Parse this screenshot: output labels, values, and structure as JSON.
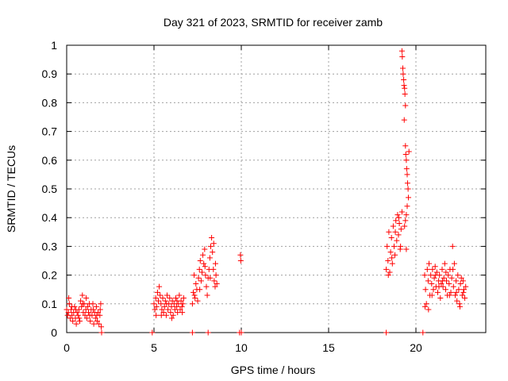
{
  "chart_data": {
    "type": "scatter",
    "title": "Day 321 of 2023, SRMTID for receiver zamb",
    "xlabel": "GPS time / hours",
    "ylabel": "SRMTID / TECUs",
    "xlim": [
      0,
      24
    ],
    "ylim": [
      0,
      1
    ],
    "xticks": [
      0,
      5,
      10,
      15,
      20
    ],
    "xtick_labels": [
      "0",
      "5",
      "10",
      "15",
      "20"
    ],
    "yticks": [
      0,
      0.1,
      0.2,
      0.3,
      0.4,
      0.5,
      0.6,
      0.7,
      0.8,
      0.9,
      1
    ],
    "ytick_labels": [
      "0",
      "0.1",
      "0.2",
      "0.3",
      "0.4",
      "0.5",
      "0.6",
      "0.7",
      "0.8",
      "0.9",
      "1"
    ],
    "grid": true,
    "marker": "+",
    "color": "#ff0000",
    "series": [
      {
        "name": "SRMTID",
        "points": [
          [
            0.0,
            0.08
          ],
          [
            0.05,
            0.06
          ],
          [
            0.1,
            0.07
          ],
          [
            0.15,
            0.1
          ],
          [
            0.2,
            0.05
          ],
          [
            0.25,
            0.08
          ],
          [
            0.3,
            0.06
          ],
          [
            0.35,
            0.04
          ],
          [
            0.4,
            0.07
          ],
          [
            0.45,
            0.09
          ],
          [
            0.5,
            0.05
          ],
          [
            0.55,
            0.03
          ],
          [
            0.6,
            0.07
          ],
          [
            0.65,
            0.06
          ],
          [
            0.7,
            0.08
          ],
          [
            0.75,
            0.04
          ],
          [
            0.8,
            0.11
          ],
          [
            0.85,
            0.09
          ],
          [
            0.9,
            0.13
          ],
          [
            0.95,
            0.07
          ],
          [
            1.0,
            0.1
          ],
          [
            1.05,
            0.06
          ],
          [
            1.1,
            0.08
          ],
          [
            1.15,
            0.05
          ],
          [
            1.2,
            0.09
          ],
          [
            1.25,
            0.07
          ],
          [
            1.3,
            0.1
          ],
          [
            1.35,
            0.04
          ],
          [
            1.4,
            0.08
          ],
          [
            1.45,
            0.06
          ],
          [
            1.5,
            0.1
          ],
          [
            1.55,
            0.03
          ],
          [
            1.6,
            0.07
          ],
          [
            1.65,
            0.05
          ],
          [
            1.7,
            0.09
          ],
          [
            1.75,
            0.04
          ],
          [
            1.8,
            0.07
          ],
          [
            1.85,
            0.03
          ],
          [
            1.9,
            0.06
          ],
          [
            1.95,
            0.1
          ],
          [
            1.98,
            0.02
          ],
          [
            0.12,
            0.12
          ],
          [
            0.3,
            0.09
          ],
          [
            0.52,
            0.08
          ],
          [
            0.72,
            0.05
          ],
          [
            0.92,
            0.1
          ],
          [
            1.12,
            0.12
          ],
          [
            1.32,
            0.06
          ],
          [
            1.52,
            0.08
          ],
          [
            1.72,
            0.06
          ],
          [
            1.92,
            0.08
          ],
          [
            2.0,
            0.0
          ],
          [
            4.9,
            0.0
          ],
          [
            5.0,
            0.1
          ],
          [
            5.05,
            0.08
          ],
          [
            5.1,
            0.12
          ],
          [
            5.15,
            0.09
          ],
          [
            5.2,
            0.14
          ],
          [
            5.25,
            0.11
          ],
          [
            5.3,
            0.16
          ],
          [
            5.35,
            0.13
          ],
          [
            5.4,
            0.1
          ],
          [
            5.45,
            0.08
          ],
          [
            5.5,
            0.12
          ],
          [
            5.55,
            0.07
          ],
          [
            5.6,
            0.09
          ],
          [
            5.65,
            0.11
          ],
          [
            5.7,
            0.06
          ],
          [
            5.75,
            0.13
          ],
          [
            5.8,
            0.08
          ],
          [
            5.85,
            0.1
          ],
          [
            5.9,
            0.12
          ],
          [
            5.95,
            0.07
          ],
          [
            6.0,
            0.09
          ],
          [
            6.05,
            0.11
          ],
          [
            6.1,
            0.06
          ],
          [
            6.15,
            0.1
          ],
          [
            6.2,
            0.08
          ],
          [
            6.25,
            0.12
          ],
          [
            6.3,
            0.09
          ],
          [
            6.35,
            0.07
          ],
          [
            6.4,
            0.1
          ],
          [
            6.45,
            0.13
          ],
          [
            6.5,
            0.08
          ],
          [
            6.55,
            0.11
          ],
          [
            6.6,
            0.09
          ],
          [
            6.65,
            0.1
          ],
          [
            6.7,
            0.12
          ],
          [
            5.12,
            0.06
          ],
          [
            5.42,
            0.06
          ],
          [
            5.72,
            0.1
          ],
          [
            6.02,
            0.05
          ],
          [
            6.32,
            0.11
          ],
          [
            6.62,
            0.07
          ],
          [
            7.2,
            0.0
          ],
          [
            7.2,
            0.1
          ],
          [
            7.25,
            0.14
          ],
          [
            7.3,
            0.2
          ],
          [
            7.35,
            0.12
          ],
          [
            7.4,
            0.17
          ],
          [
            7.45,
            0.15
          ],
          [
            7.5,
            0.11
          ],
          [
            7.55,
            0.19
          ],
          [
            7.6,
            0.22
          ],
          [
            7.65,
            0.25
          ],
          [
            7.7,
            0.18
          ],
          [
            7.75,
            0.21
          ],
          [
            7.8,
            0.27
          ],
          [
            7.85,
            0.24
          ],
          [
            7.9,
            0.29
          ],
          [
            7.95,
            0.2
          ],
          [
            8.0,
            0.16
          ],
          [
            8.05,
            0.13
          ],
          [
            8.1,
            0.19
          ],
          [
            8.15,
            0.22
          ],
          [
            8.2,
            0.26
          ],
          [
            8.25,
            0.3
          ],
          [
            8.3,
            0.33
          ],
          [
            8.35,
            0.28
          ],
          [
            8.4,
            0.22
          ],
          [
            8.45,
            0.18
          ],
          [
            8.5,
            0.16
          ],
          [
            8.55,
            0.2
          ],
          [
            8.6,
            0.17
          ],
          [
            7.32,
            0.13
          ],
          [
            7.62,
            0.15
          ],
          [
            7.92,
            0.23
          ],
          [
            8.22,
            0.19
          ],
          [
            8.42,
            0.31
          ],
          [
            8.52,
            0.24
          ],
          [
            8.1,
            0.0
          ],
          [
            9.9,
            0.0
          ],
          [
            10.0,
            0.0
          ],
          [
            9.95,
            0.27
          ],
          [
            9.97,
            0.25
          ],
          [
            18.3,
            0.0
          ],
          [
            18.3,
            0.22
          ],
          [
            18.35,
            0.3
          ],
          [
            18.4,
            0.25
          ],
          [
            18.45,
            0.35
          ],
          [
            18.5,
            0.21
          ],
          [
            18.55,
            0.28
          ],
          [
            18.6,
            0.33
          ],
          [
            18.65,
            0.24
          ],
          [
            18.7,
            0.37
          ],
          [
            18.75,
            0.3
          ],
          [
            18.8,
            0.27
          ],
          [
            18.85,
            0.39
          ],
          [
            18.9,
            0.32
          ],
          [
            18.95,
            0.41
          ],
          [
            19.0,
            0.34
          ],
          [
            19.05,
            0.38
          ],
          [
            19.1,
            0.29
          ],
          [
            19.15,
            0.36
          ],
          [
            19.2,
            0.42
          ],
          [
            18.42,
            0.2
          ],
          [
            18.62,
            0.26
          ],
          [
            18.82,
            0.35
          ],
          [
            19.02,
            0.4
          ],
          [
            19.12,
            0.3
          ],
          [
            19.2,
            0.98
          ],
          [
            19.22,
            0.96
          ],
          [
            19.25,
            0.92
          ],
          [
            19.27,
            0.9
          ],
          [
            19.3,
            0.88
          ],
          [
            19.32,
            0.86
          ],
          [
            19.35,
            0.85
          ],
          [
            19.37,
            0.83
          ],
          [
            19.4,
            0.79
          ],
          [
            19.33,
            0.74
          ],
          [
            19.4,
            0.65
          ],
          [
            19.42,
            0.62
          ],
          [
            19.45,
            0.6
          ],
          [
            19.47,
            0.57
          ],
          [
            19.5,
            0.55
          ],
          [
            19.52,
            0.52
          ],
          [
            19.55,
            0.5
          ],
          [
            19.6,
            0.63
          ],
          [
            19.57,
            0.47
          ],
          [
            19.5,
            0.44
          ],
          [
            19.45,
            0.41
          ],
          [
            19.4,
            0.39
          ],
          [
            19.35,
            0.37
          ],
          [
            19.45,
            0.29
          ],
          [
            20.4,
            0.0
          ],
          [
            20.5,
            0.2
          ],
          [
            20.55,
            0.15
          ],
          [
            20.6,
            0.1
          ],
          [
            20.65,
            0.22
          ],
          [
            20.7,
            0.18
          ],
          [
            20.75,
            0.24
          ],
          [
            20.8,
            0.13
          ],
          [
            20.85,
            0.2
          ],
          [
            20.9,
            0.17
          ],
          [
            20.95,
            0.22
          ],
          [
            21.0,
            0.15
          ],
          [
            21.05,
            0.19
          ],
          [
            21.1,
            0.23
          ],
          [
            21.15,
            0.16
          ],
          [
            21.2,
            0.21
          ],
          [
            21.25,
            0.14
          ],
          [
            21.3,
            0.18
          ],
          [
            21.35,
            0.2
          ],
          [
            21.4,
            0.12
          ],
          [
            21.45,
            0.17
          ],
          [
            21.5,
            0.22
          ],
          [
            21.55,
            0.16
          ],
          [
            21.6,
            0.19
          ],
          [
            21.65,
            0.24
          ],
          [
            21.7,
            0.15
          ],
          [
            21.75,
            0.18
          ],
          [
            21.8,
            0.13
          ],
          [
            21.85,
            0.2
          ],
          [
            21.9,
            0.17
          ],
          [
            21.95,
            0.22
          ],
          [
            22.0,
            0.14
          ],
          [
            22.05,
            0.19
          ],
          [
            22.1,
            0.3
          ],
          [
            22.15,
            0.16
          ],
          [
            22.2,
            0.24
          ],
          [
            22.25,
            0.13
          ],
          [
            22.3,
            0.18
          ],
          [
            22.35,
            0.11
          ],
          [
            22.4,
            0.2
          ],
          [
            22.45,
            0.15
          ],
          [
            22.5,
            0.1
          ],
          [
            22.55,
            0.17
          ],
          [
            22.6,
            0.19
          ],
          [
            22.65,
            0.13
          ],
          [
            22.7,
            0.18
          ],
          [
            22.75,
            0.15
          ],
          [
            22.8,
            0.12
          ],
          [
            22.85,
            0.16
          ],
          [
            20.52,
            0.09
          ],
          [
            20.72,
            0.08
          ],
          [
            20.92,
            0.13
          ],
          [
            21.12,
            0.2
          ],
          [
            21.32,
            0.16
          ],
          [
            21.52,
            0.18
          ],
          [
            21.72,
            0.21
          ],
          [
            21.92,
            0.13
          ],
          [
            22.12,
            0.22
          ],
          [
            22.32,
            0.14
          ],
          [
            22.52,
            0.09
          ],
          [
            22.72,
            0.14
          ]
        ]
      }
    ]
  }
}
